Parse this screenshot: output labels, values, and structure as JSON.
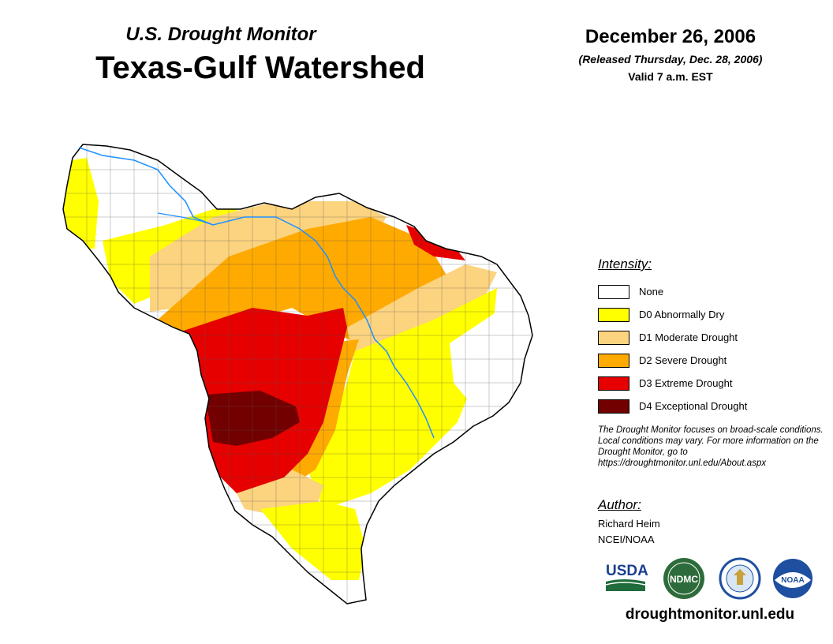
{
  "header": {
    "subtitle": "U.S. Drought Monitor",
    "title": "Texas-Gulf Watershed",
    "date": "December 26, 2006",
    "released": "(Released Thursday, Dec. 28, 2006)",
    "valid": "Valid 7 a.m. EST"
  },
  "legend": {
    "heading": "Intensity:",
    "items": [
      {
        "label": "None",
        "color": "#ffffff"
      },
      {
        "label": "D0 Abnormally Dry",
        "color": "#ffff00"
      },
      {
        "label": "D1 Moderate Drought",
        "color": "#fcd37f"
      },
      {
        "label": "D2 Severe Drought",
        "color": "#ffaa00"
      },
      {
        "label": "D3 Extreme Drought",
        "color": "#e60000"
      },
      {
        "label": "D4 Exceptional Drought",
        "color": "#730000"
      }
    ]
  },
  "note": "The Drought Monitor focuses on broad-scale conditions. Local conditions may vary. For more information on the Drought Monitor, go to https://droughtmonitor.unl.edu/About.aspx",
  "author": {
    "heading": "Author:",
    "name": "Richard Heim",
    "org": "NCEI/NOAA"
  },
  "logos": {
    "usda": "USDA",
    "ndmc": "NDMC",
    "noaa": "NOAA"
  },
  "website": "droughtmonitor.unl.edu",
  "colors": {
    "river": "#1e90ff",
    "usda_green": "#1f6b3a",
    "usda_blue": "#1b3f8f",
    "ndmc_green": "#2e6b3a",
    "noaa_blue": "#1e4fa0"
  }
}
